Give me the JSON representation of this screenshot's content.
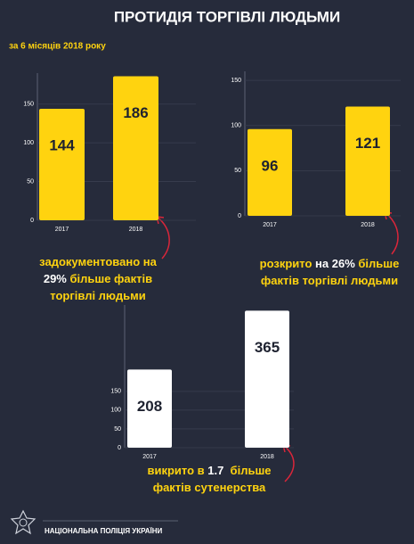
{
  "header": {
    "title": "ПРОТИДІЯ ТОРГІВЛІ ЛЮДЬМИ",
    "subtitle": "за 6 місяців 2018 року"
  },
  "chart_data": [
    {
      "type": "bar",
      "categories": [
        "2017",
        "2018"
      ],
      "values": [
        144,
        186
      ],
      "color": "#ffd30f",
      "ylim": [
        0,
        190
      ],
      "yticks": [
        0,
        50,
        100,
        150
      ],
      "grid": true,
      "caption": [
        [
          {
            "text": "задокументовано на",
            "highlight": true
          }
        ],
        [
          {
            "text": "29%",
            "highlight": false
          },
          {
            "text": " більше фактів",
            "highlight": true
          }
        ],
        [
          {
            "text": "торгівлі людьми",
            "highlight": true
          }
        ]
      ]
    },
    {
      "type": "bar",
      "categories": [
        "2017",
        "2018"
      ],
      "values": [
        96,
        121
      ],
      "color": "#ffd30f",
      "ylim": [
        0,
        160
      ],
      "yticks": [
        0,
        50,
        100,
        150
      ],
      "grid": true,
      "caption": [
        [
          {
            "text": "розкрито",
            "highlight": true
          },
          {
            "text": " на 26%",
            "highlight": false
          },
          {
            "text": " більше",
            "highlight": true
          }
        ],
        [
          {
            "text": "фактів торгівлі людьми",
            "highlight": true
          }
        ]
      ]
    },
    {
      "type": "bar",
      "categories": [
        "2017",
        "2018"
      ],
      "values": [
        208,
        365
      ],
      "color": "#ffffff",
      "ylim": [
        0,
        380
      ],
      "yticks": [
        0,
        50,
        100,
        150
      ],
      "grid": true,
      "caption": [
        [
          {
            "text": "викрито в",
            "highlight": true
          },
          {
            "text": " 1.7 ",
            "highlight": false
          },
          {
            "text": " більше",
            "highlight": true
          }
        ],
        [
          {
            "text": "фактів сутенерства",
            "highlight": true
          }
        ]
      ]
    }
  ],
  "footer": {
    "text": "НАЦІОНАЛЬНА ПОЛІЦІЯ УКРАЇНИ"
  }
}
